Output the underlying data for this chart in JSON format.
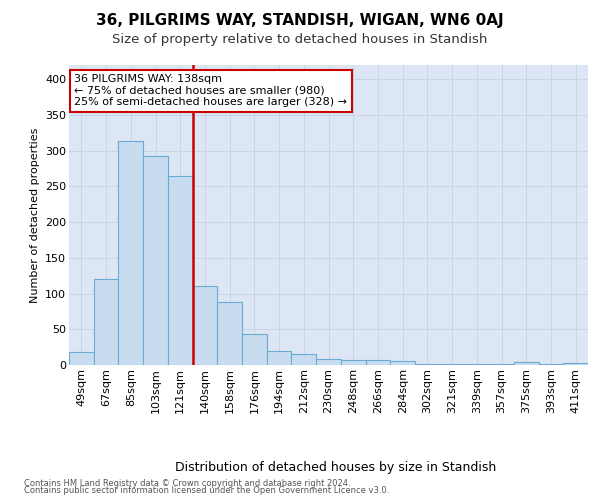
{
  "title": "36, PILGRIMS WAY, STANDISH, WIGAN, WN6 0AJ",
  "subtitle": "Size of property relative to detached houses in Standish",
  "xlabel": "Distribution of detached houses by size in Standish",
  "ylabel": "Number of detached properties",
  "categories": [
    "49sqm",
    "67sqm",
    "85sqm",
    "103sqm",
    "121sqm",
    "140sqm",
    "158sqm",
    "176sqm",
    "194sqm",
    "212sqm",
    "230sqm",
    "248sqm",
    "266sqm",
    "284sqm",
    "302sqm",
    "321sqm",
    "339sqm",
    "357sqm",
    "375sqm",
    "393sqm",
    "411sqm"
  ],
  "values": [
    18,
    120,
    313,
    293,
    265,
    110,
    88,
    44,
    20,
    15,
    8,
    7,
    7,
    5,
    2,
    1,
    1,
    1,
    4,
    1,
    3
  ],
  "bar_color": "#c8dcf0",
  "bar_edge_color": "#6aaad4",
  "vline_color": "#cc0000",
  "vline_pos": 4.5,
  "annotation_line1": "36 PILGRIMS WAY: 138sqm",
  "annotation_line2": "← 75% of detached houses are smaller (980)",
  "annotation_line3": "25% of semi-detached houses are larger (328) →",
  "ylim": [
    0,
    420
  ],
  "yticks": [
    0,
    50,
    100,
    150,
    200,
    250,
    300,
    350,
    400
  ],
  "grid_color": "#c8d4e8",
  "axes_bg": "#dce6f4",
  "fig_bg": "#ffffff",
  "footer1": "Contains HM Land Registry data © Crown copyright and database right 2024.",
  "footer2": "Contains public sector information licensed under the Open Government Licence v3.0.",
  "title_fontsize": 11,
  "subtitle_fontsize": 9.5,
  "xlabel_fontsize": 9,
  "ylabel_fontsize": 8,
  "tick_fontsize": 8,
  "annot_fontsize": 8
}
